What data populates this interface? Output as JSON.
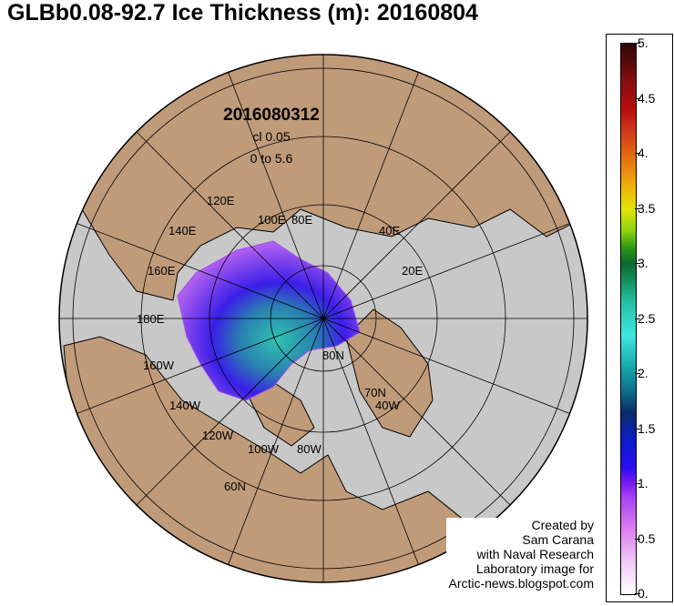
{
  "title": "GLBb0.08-92.7 Ice Thickness (m): 20160804",
  "info": {
    "date": "2016080312",
    "contour_interval": "cl 0.05",
    "range": "0 to 5.6"
  },
  "map_labels": {
    "lon_120e": "120E",
    "lon_140e": "140E",
    "lon_100e": "100E",
    "lon_80e": "80E",
    "lon_160e": "160E",
    "lon_40e": "40E",
    "lon_20e": "20E",
    "lon_180e": "180E",
    "lon_160w": "160W",
    "lon_140w": "140W",
    "lon_120w": "120W",
    "lon_100w": "100W",
    "lon_80w": "80W",
    "lon_40w": "40W",
    "lat_80n": "80N",
    "lat_70n": "70N",
    "lat_60n": "60N"
  },
  "credit": [
    "Created by",
    "Sam Carana",
    "with Naval Research",
    "Laboratory image for",
    "Arctic-news.blogspot.com"
  ],
  "colorbar": {
    "ticks": [
      "5.",
      "4.5",
      "4.",
      "3.5",
      "3.",
      "2.5",
      "2.",
      "1.5",
      "1.",
      "0.5",
      "0."
    ],
    "min": 0,
    "max": 5,
    "unit": "m"
  },
  "colors": {
    "ocean": "#c8c8c8",
    "land": "#bf9b7a",
    "ice_thin": "#a24cf0",
    "ice_mid": "#2a0ef2",
    "ice_thick": "#2fc4b0"
  }
}
